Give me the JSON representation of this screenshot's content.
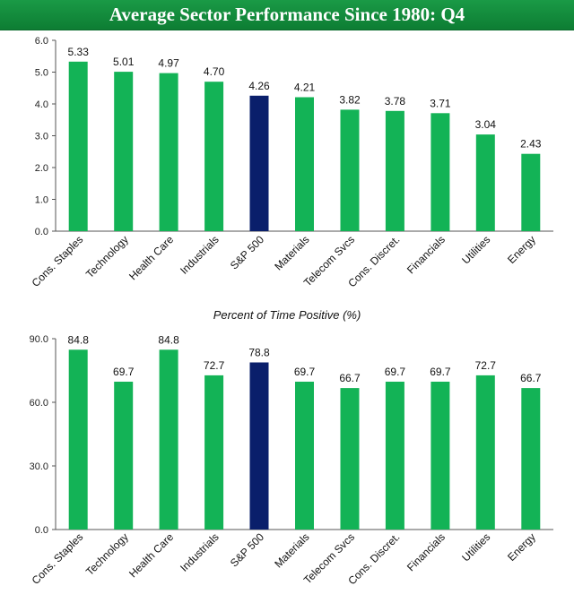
{
  "title": "Average Sector Performance Since 1980: Q4",
  "colors": {
    "sector": "#13b356",
    "index": "#0a1f6b",
    "header": "#0f8a3a"
  },
  "chart_data": [
    {
      "type": "bar",
      "title": "",
      "categories": [
        "Cons. Staples",
        "Technology",
        "Health Care",
        "Industrials",
        "S&P 500",
        "Materials",
        "Telecom Svcs",
        "Cons. Discret.",
        "Financials",
        "Utilities",
        "Energy"
      ],
      "values": [
        5.33,
        5.01,
        4.97,
        4.7,
        4.26,
        4.21,
        3.82,
        3.78,
        3.71,
        3.04,
        2.43
      ],
      "labels": [
        "5.33",
        "5.01",
        "4.97",
        "4.70",
        "4.26",
        "4.21",
        "3.82",
        "3.78",
        "3.71",
        "3.04",
        "2.43"
      ],
      "ylim": [
        0,
        6
      ],
      "yticks": [
        "0.0",
        "1.0",
        "2.0",
        "3.0",
        "4.0",
        "5.0",
        "6.0"
      ],
      "highlight": "S&P 500"
    },
    {
      "type": "bar",
      "title": "Percent of Time Positive (%)",
      "categories": [
        "Cons. Staples",
        "Technology",
        "Health Care",
        "Industrials",
        "S&P 500",
        "Materials",
        "Telecom Svcs",
        "Cons. Discret.",
        "Financials",
        "Utilities",
        "Energy"
      ],
      "values": [
        84.8,
        69.7,
        84.8,
        72.7,
        78.8,
        69.7,
        66.7,
        69.7,
        69.7,
        72.7,
        66.7
      ],
      "labels": [
        "84.8",
        "69.7",
        "84.8",
        "72.7",
        "78.8",
        "69.7",
        "66.7",
        "69.7",
        "69.7",
        "72.7",
        "66.7"
      ],
      "ylim": [
        0,
        90
      ],
      "yticks": [
        "0.0",
        "30.0",
        "60.0",
        "90.0"
      ],
      "highlight": "S&P 500"
    }
  ]
}
